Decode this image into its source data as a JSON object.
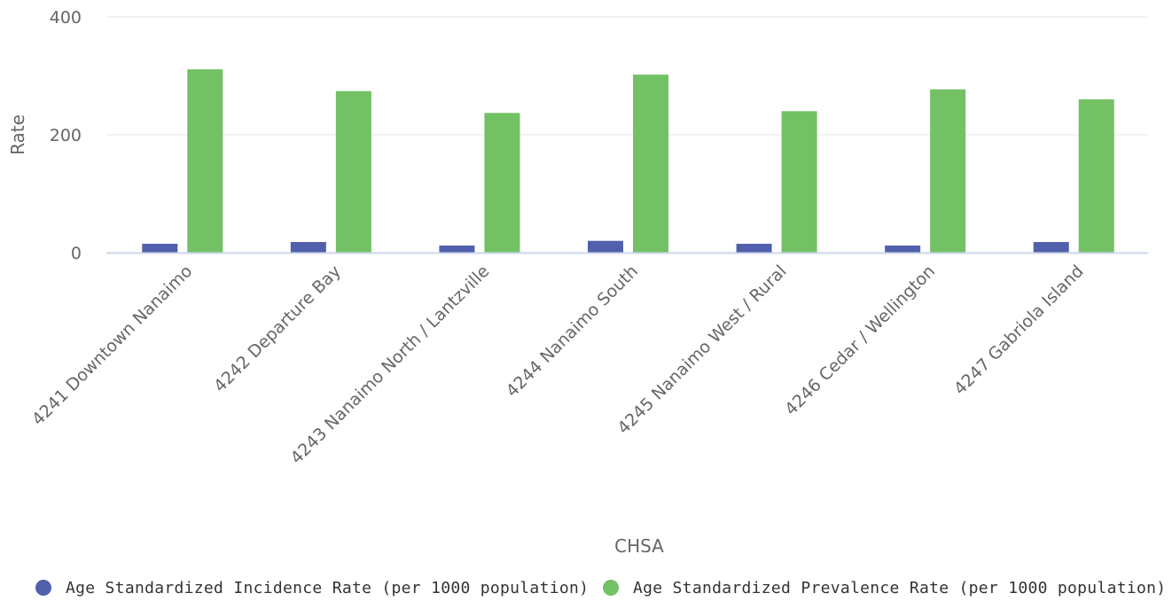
{
  "chart_data": {
    "type": "bar",
    "categories": [
      "4241 Downtown Nanaimo",
      "4242 Departure Bay",
      "4243 Nanaimo North / Lantzville",
      "4244 Nanaimo South",
      "4245 Nanaimo West / Rural",
      "4246 Cedar / Wellington",
      "4247 Gabriola Island"
    ],
    "series": [
      {
        "name": "Age Standardized Incidence Rate (per 1000 population)",
        "color": "#5160ac",
        "values": [
          15,
          18,
          12,
          20,
          15,
          12,
          18
        ]
      },
      {
        "name": "Age Standardized Prevalence Rate (per 1000 population)",
        "color": "#72c165",
        "values": [
          311,
          274,
          237,
          302,
          240,
          277,
          260
        ]
      }
    ],
    "xlabel": "CHSA",
    "ylabel": "Rate",
    "ylim": [
      0,
      400
    ],
    "yticks": [
      "0",
      "200",
      "400"
    ],
    "grid": true,
    "legend_position": "bottom"
  }
}
